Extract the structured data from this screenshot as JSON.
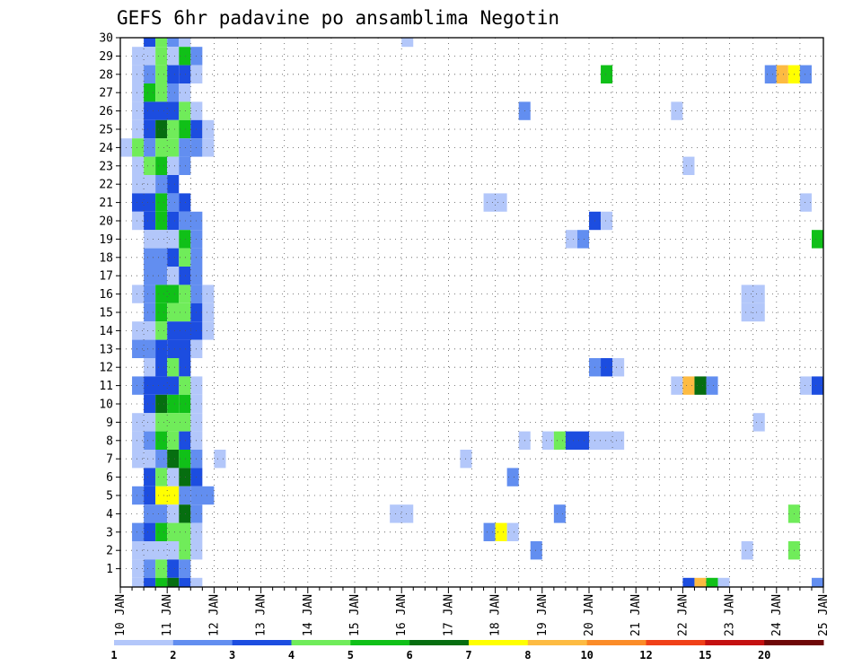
{
  "chart_data": {
    "type": "heatmap",
    "title": "GEFS 6hr padavine po ansamblima Negotin",
    "x_tick_labels": [
      "10 JAN",
      "11 JAN",
      "12 JAN",
      "13 JAN",
      "14 JAN",
      "15 JAN",
      "16 JAN",
      "17 JAN",
      "18 JAN",
      "19 JAN",
      "20 JAN",
      "21 JAN",
      "22 JAN",
      "23 JAN",
      "24 JAN",
      "25 JAN"
    ],
    "y_tick_labels": [
      "1",
      "2",
      "3",
      "4",
      "5",
      "6",
      "7",
      "8",
      "9",
      "10",
      "11",
      "12",
      "13",
      "14",
      "15",
      "16",
      "17",
      "18",
      "19",
      "20",
      "21",
      "22",
      "23",
      "24",
      "25",
      "26",
      "27",
      "28",
      "29",
      "30"
    ],
    "x_unit": "day",
    "xlim": [
      10,
      25
    ],
    "ylim": [
      0,
      30
    ],
    "levels": [
      "1",
      "2",
      "3",
      "4",
      "5",
      "6",
      "7",
      "8",
      "10",
      "12",
      "15",
      "20"
    ],
    "colors": [
      "#b3c7fa",
      "#628ef0",
      "#1c4de0",
      "#70ec5a",
      "#10c018",
      "#066e10",
      "#ffff00",
      "#fdbb42",
      "#fb8c28",
      "#f04018",
      "#c41010",
      "#6e0808"
    ],
    "cells": [
      {
        "x": 10.5,
        "x2": 10.75,
        "m": 30,
        "c": 2
      },
      {
        "x": 10.75,
        "x2": 11,
        "m": 30,
        "c": 3
      },
      {
        "x": 11,
        "x2": 11.25,
        "m": 30,
        "c": 1
      },
      {
        "x": 11.25,
        "x2": 11.5,
        "m": 30,
        "c": 0
      },
      {
        "x": 16,
        "x2": 16.25,
        "m": 30,
        "c": 0
      },
      {
        "x": 10.25,
        "x2": 10.75,
        "m": 29,
        "c": 0
      },
      {
        "x": 10.75,
        "x2": 11,
        "m": 29,
        "c": 3
      },
      {
        "x": 11,
        "x2": 11.25,
        "m": 29,
        "c": 0
      },
      {
        "x": 11.25,
        "x2": 11.5,
        "m": 29,
        "c": 4
      },
      {
        "x": 11.5,
        "x2": 11.75,
        "m": 29,
        "c": 1
      },
      {
        "x": 10.25,
        "x2": 10.5,
        "m": 28,
        "c": 0
      },
      {
        "x": 10.5,
        "x2": 10.75,
        "m": 28,
        "c": 1
      },
      {
        "x": 10.75,
        "x2": 11,
        "m": 28,
        "c": 3
      },
      {
        "x": 11,
        "x2": 11.25,
        "m": 28,
        "c": 2
      },
      {
        "x": 11.25,
        "x2": 11.5,
        "m": 28,
        "c": 2
      },
      {
        "x": 11.5,
        "x2": 11.75,
        "m": 28,
        "c": 0
      },
      {
        "x": 20.25,
        "x2": 20.5,
        "m": 28,
        "c": 4
      },
      {
        "x": 23.75,
        "x2": 24,
        "m": 28,
        "c": 1
      },
      {
        "x": 24,
        "x2": 24.25,
        "m": 28,
        "c": 7
      },
      {
        "x": 24.25,
        "x2": 24.5,
        "m": 28,
        "c": 6
      },
      {
        "x": 24.5,
        "x2": 24.75,
        "m": 28,
        "c": 1
      },
      {
        "x": 10.25,
        "x2": 10.5,
        "m": 27,
        "c": 0
      },
      {
        "x": 10.5,
        "x2": 10.75,
        "m": 27,
        "c": 4
      },
      {
        "x": 10.75,
        "x2": 11,
        "m": 27,
        "c": 3
      },
      {
        "x": 11,
        "x2": 11.25,
        "m": 27,
        "c": 1
      },
      {
        "x": 11.25,
        "x2": 11.5,
        "m": 27,
        "c": 0
      },
      {
        "x": 10.25,
        "x2": 10.5,
        "m": 26,
        "c": 0
      },
      {
        "x": 10.5,
        "x2": 11.25,
        "m": 26,
        "c": 2
      },
      {
        "x": 11.25,
        "x2": 11.5,
        "m": 26,
        "c": 3
      },
      {
        "x": 11.5,
        "x2": 11.75,
        "m": 26,
        "c": 0
      },
      {
        "x": 18.5,
        "x2": 18.75,
        "m": 26,
        "c": 1
      },
      {
        "x": 21.75,
        "x2": 22,
        "m": 26,
        "c": 0
      },
      {
        "x": 10.25,
        "x2": 10.5,
        "m": 25,
        "c": 0
      },
      {
        "x": 10.5,
        "x2": 10.75,
        "m": 25,
        "c": 2
      },
      {
        "x": 10.75,
        "x2": 11,
        "m": 25,
        "c": 5
      },
      {
        "x": 11,
        "x2": 11.25,
        "m": 25,
        "c": 3
      },
      {
        "x": 11.25,
        "x2": 11.5,
        "m": 25,
        "c": 4
      },
      {
        "x": 11.5,
        "x2": 11.75,
        "m": 25,
        "c": 2
      },
      {
        "x": 11.75,
        "x2": 12,
        "m": 25,
        "c": 0
      },
      {
        "x": 10,
        "x2": 10.25,
        "m": 24,
        "c": 0
      },
      {
        "x": 10.25,
        "x2": 10.5,
        "m": 24,
        "c": 3
      },
      {
        "x": 10.5,
        "x2": 10.75,
        "m": 24,
        "c": 1
      },
      {
        "x": 10.75,
        "x2": 11.25,
        "m": 24,
        "c": 3
      },
      {
        "x": 11.25,
        "x2": 11.5,
        "m": 24,
        "c": 1
      },
      {
        "x": 11.5,
        "x2": 11.75,
        "m": 24,
        "c": 1
      },
      {
        "x": 11.75,
        "x2": 12,
        "m": 24,
        "c": 0
      },
      {
        "x": 10.25,
        "x2": 10.5,
        "m": 23,
        "c": 0
      },
      {
        "x": 10.5,
        "x2": 10.75,
        "m": 23,
        "c": 3
      },
      {
        "x": 10.75,
        "x2": 11,
        "m": 23,
        "c": 4
      },
      {
        "x": 11,
        "x2": 11.25,
        "m": 23,
        "c": 0
      },
      {
        "x": 11.25,
        "x2": 11.5,
        "m": 23,
        "c": 1
      },
      {
        "x": 22,
        "x2": 22.25,
        "m": 23,
        "c": 0
      },
      {
        "x": 10.25,
        "x2": 10.75,
        "m": 22,
        "c": 0
      },
      {
        "x": 10.75,
        "x2": 11,
        "m": 22,
        "c": 1
      },
      {
        "x": 11,
        "x2": 11.25,
        "m": 22,
        "c": 2
      },
      {
        "x": 10.25,
        "x2": 10.75,
        "m": 21,
        "c": 2
      },
      {
        "x": 10.75,
        "x2": 11,
        "m": 21,
        "c": 4
      },
      {
        "x": 11,
        "x2": 11.25,
        "m": 21,
        "c": 1
      },
      {
        "x": 11.25,
        "x2": 11.5,
        "m": 21,
        "c": 2
      },
      {
        "x": 17.75,
        "x2": 18.25,
        "m": 21,
        "c": 0
      },
      {
        "x": 24.5,
        "x2": 24.75,
        "m": 21,
        "c": 0
      },
      {
        "x": 10.25,
        "x2": 10.5,
        "m": 20,
        "c": 0
      },
      {
        "x": 10.5,
        "x2": 10.75,
        "m": 20,
        "c": 2
      },
      {
        "x": 10.75,
        "x2": 11,
        "m": 20,
        "c": 4
      },
      {
        "x": 11,
        "x2": 11.25,
        "m": 20,
        "c": 2
      },
      {
        "x": 11.25,
        "x2": 11.75,
        "m": 20,
        "c": 1
      },
      {
        "x": 20,
        "x2": 20.25,
        "m": 20,
        "c": 2
      },
      {
        "x": 20.25,
        "x2": 20.5,
        "m": 20,
        "c": 0
      },
      {
        "x": 10.5,
        "x2": 11.25,
        "m": 19,
        "c": 0
      },
      {
        "x": 11.25,
        "x2": 11.5,
        "m": 19,
        "c": 4
      },
      {
        "x": 11.5,
        "x2": 11.75,
        "m": 19,
        "c": 1
      },
      {
        "x": 19.5,
        "x2": 19.75,
        "m": 19,
        "c": 0
      },
      {
        "x": 19.75,
        "x2": 20,
        "m": 19,
        "c": 1
      },
      {
        "x": 24.75,
        "x2": 25,
        "m": 19,
        "c": 4
      },
      {
        "x": 10.5,
        "x2": 11,
        "m": 18,
        "c": 1
      },
      {
        "x": 11,
        "x2": 11.25,
        "m": 18,
        "c": 2
      },
      {
        "x": 11.25,
        "x2": 11.5,
        "m": 18,
        "c": 3
      },
      {
        "x": 11.5,
        "x2": 11.75,
        "m": 18,
        "c": 1
      },
      {
        "x": 10.5,
        "x2": 11,
        "m": 17,
        "c": 1
      },
      {
        "x": 11,
        "x2": 11.25,
        "m": 17,
        "c": 0
      },
      {
        "x": 11.25,
        "x2": 11.5,
        "m": 17,
        "c": 2
      },
      {
        "x": 11.5,
        "x2": 11.75,
        "m": 17,
        "c": 1
      },
      {
        "x": 10.25,
        "x2": 10.5,
        "m": 16,
        "c": 0
      },
      {
        "x": 10.5,
        "x2": 10.75,
        "m": 16,
        "c": 1
      },
      {
        "x": 10.75,
        "x2": 11.25,
        "m": 16,
        "c": 4
      },
      {
        "x": 11.25,
        "x2": 11.5,
        "m": 16,
        "c": 3
      },
      {
        "x": 11.5,
        "x2": 11.75,
        "m": 16,
        "c": 1
      },
      {
        "x": 11.75,
        "x2": 12,
        "m": 16,
        "c": 0
      },
      {
        "x": 23.25,
        "x2": 23.75,
        "m": 16,
        "c": 0
      },
      {
        "x": 10.5,
        "x2": 10.75,
        "m": 15,
        "c": 1
      },
      {
        "x": 10.75,
        "x2": 11,
        "m": 15,
        "c": 4
      },
      {
        "x": 11,
        "x2": 11.5,
        "m": 15,
        "c": 3
      },
      {
        "x": 11.5,
        "x2": 11.75,
        "m": 15,
        "c": 2
      },
      {
        "x": 11.75,
        "x2": 12,
        "m": 15,
        "c": 0
      },
      {
        "x": 23.25,
        "x2": 23.75,
        "m": 15,
        "c": 0
      },
      {
        "x": 10.25,
        "x2": 10.75,
        "m": 14,
        "c": 0
      },
      {
        "x": 10.75,
        "x2": 11,
        "m": 14,
        "c": 3
      },
      {
        "x": 11,
        "x2": 11.75,
        "m": 14,
        "c": 2
      },
      {
        "x": 11.75,
        "x2": 12,
        "m": 14,
        "c": 0
      },
      {
        "x": 10.25,
        "x2": 10.75,
        "m": 13,
        "c": 1
      },
      {
        "x": 10.75,
        "x2": 11,
        "m": 13,
        "c": 2
      },
      {
        "x": 11,
        "x2": 11.5,
        "m": 13,
        "c": 2
      },
      {
        "x": 11.5,
        "x2": 11.75,
        "m": 13,
        "c": 0
      },
      {
        "x": 10.5,
        "x2": 10.75,
        "m": 12,
        "c": 0
      },
      {
        "x": 10.75,
        "x2": 11,
        "m": 12,
        "c": 2
      },
      {
        "x": 11,
        "x2": 11.25,
        "m": 12,
        "c": 3
      },
      {
        "x": 11.25,
        "x2": 11.5,
        "m": 12,
        "c": 2
      },
      {
        "x": 20,
        "x2": 20.25,
        "m": 12,
        "c": 1
      },
      {
        "x": 20.25,
        "x2": 20.5,
        "m": 12,
        "c": 2
      },
      {
        "x": 20.5,
        "x2": 20.75,
        "m": 12,
        "c": 0
      },
      {
        "x": 10.25,
        "x2": 10.5,
        "m": 11,
        "c": 1
      },
      {
        "x": 10.5,
        "x2": 11.25,
        "m": 11,
        "c": 2
      },
      {
        "x": 11.25,
        "x2": 11.5,
        "m": 11,
        "c": 3
      },
      {
        "x": 11.5,
        "x2": 11.75,
        "m": 11,
        "c": 0
      },
      {
        "x": 21.75,
        "x2": 22,
        "m": 11,
        "c": 0
      },
      {
        "x": 22,
        "x2": 22.25,
        "m": 11,
        "c": 7
      },
      {
        "x": 22.25,
        "x2": 22.5,
        "m": 11,
        "c": 5
      },
      {
        "x": 22.5,
        "x2": 22.75,
        "m": 11,
        "c": 1
      },
      {
        "x": 24.5,
        "x2": 24.75,
        "m": 11,
        "c": 0
      },
      {
        "x": 24.75,
        "x2": 25,
        "m": 11,
        "c": 2
      },
      {
        "x": 10.5,
        "x2": 10.75,
        "m": 10,
        "c": 2
      },
      {
        "x": 10.75,
        "x2": 11,
        "m": 10,
        "c": 5
      },
      {
        "x": 11,
        "x2": 11.25,
        "m": 10,
        "c": 4
      },
      {
        "x": 11.25,
        "x2": 11.5,
        "m": 10,
        "c": 4
      },
      {
        "x": 11.5,
        "x2": 11.75,
        "m": 10,
        "c": 0
      },
      {
        "x": 10.25,
        "x2": 10.75,
        "m": 9,
        "c": 0
      },
      {
        "x": 10.75,
        "x2": 11.5,
        "m": 9,
        "c": 3
      },
      {
        "x": 11.5,
        "x2": 11.75,
        "m": 9,
        "c": 0
      },
      {
        "x": 23.5,
        "x2": 23.75,
        "m": 9,
        "c": 0
      },
      {
        "x": 10.25,
        "x2": 10.5,
        "m": 8,
        "c": 0
      },
      {
        "x": 10.5,
        "x2": 10.75,
        "m": 8,
        "c": 1
      },
      {
        "x": 10.75,
        "x2": 11,
        "m": 8,
        "c": 4
      },
      {
        "x": 11,
        "x2": 11.25,
        "m": 8,
        "c": 3
      },
      {
        "x": 11.25,
        "x2": 11.5,
        "m": 8,
        "c": 2
      },
      {
        "x": 11.5,
        "x2": 11.75,
        "m": 8,
        "c": 0
      },
      {
        "x": 18.5,
        "x2": 18.75,
        "m": 8,
        "c": 0
      },
      {
        "x": 19,
        "x2": 19.25,
        "m": 8,
        "c": 0
      },
      {
        "x": 19.25,
        "x2": 19.5,
        "m": 8,
        "c": 3
      },
      {
        "x": 19.5,
        "x2": 20,
        "m": 8,
        "c": 2
      },
      {
        "x": 20,
        "x2": 20.75,
        "m": 8,
        "c": 0
      },
      {
        "x": 10.25,
        "x2": 10.5,
        "m": 7,
        "c": 0
      },
      {
        "x": 10.5,
        "x2": 10.75,
        "m": 7,
        "c": 0
      },
      {
        "x": 10.75,
        "x2": 11,
        "m": 7,
        "c": 1
      },
      {
        "x": 11,
        "x2": 11.25,
        "m": 7,
        "c": 5
      },
      {
        "x": 11.25,
        "x2": 11.5,
        "m": 7,
        "c": 4
      },
      {
        "x": 11.5,
        "x2": 11.75,
        "m": 7,
        "c": 1
      },
      {
        "x": 12,
        "x2": 12.25,
        "m": 7,
        "c": 0
      },
      {
        "x": 17.25,
        "x2": 17.5,
        "m": 7,
        "c": 0
      },
      {
        "x": 10.5,
        "x2": 10.75,
        "m": 6,
        "c": 2
      },
      {
        "x": 10.75,
        "x2": 11,
        "m": 6,
        "c": 3
      },
      {
        "x": 11,
        "x2": 11.25,
        "m": 6,
        "c": 0
      },
      {
        "x": 11.25,
        "x2": 11.5,
        "m": 6,
        "c": 5
      },
      {
        "x": 11.5,
        "x2": 11.75,
        "m": 6,
        "c": 2
      },
      {
        "x": 18.25,
        "x2": 18.5,
        "m": 6,
        "c": 1
      },
      {
        "x": 10.25,
        "x2": 10.5,
        "m": 5,
        "c": 1
      },
      {
        "x": 10.5,
        "x2": 10.75,
        "m": 5,
        "c": 2
      },
      {
        "x": 10.75,
        "x2": 11.25,
        "m": 5,
        "c": 6
      },
      {
        "x": 11.25,
        "x2": 11.5,
        "m": 5,
        "c": 1
      },
      {
        "x": 11.5,
        "x2": 12,
        "m": 5,
        "c": 1
      },
      {
        "x": 10.5,
        "x2": 11,
        "m": 4,
        "c": 1
      },
      {
        "x": 11,
        "x2": 11.25,
        "m": 4,
        "c": 0
      },
      {
        "x": 11.25,
        "x2": 11.5,
        "m": 4,
        "c": 5
      },
      {
        "x": 11.5,
        "x2": 11.75,
        "m": 4,
        "c": 1
      },
      {
        "x": 15.75,
        "x2": 16.25,
        "m": 4,
        "c": 0
      },
      {
        "x": 19.25,
        "x2": 19.5,
        "m": 4,
        "c": 1
      },
      {
        "x": 24.25,
        "x2": 24.5,
        "m": 4,
        "c": 3
      },
      {
        "x": 10.25,
        "x2": 10.5,
        "m": 3,
        "c": 1
      },
      {
        "x": 10.5,
        "x2": 10.75,
        "m": 3,
        "c": 2
      },
      {
        "x": 10.75,
        "x2": 11,
        "m": 3,
        "c": 4
      },
      {
        "x": 11,
        "x2": 11.5,
        "m": 3,
        "c": 3
      },
      {
        "x": 11.5,
        "x2": 11.75,
        "m": 3,
        "c": 0
      },
      {
        "x": 17.75,
        "x2": 18,
        "m": 3,
        "c": 1
      },
      {
        "x": 18,
        "x2": 18.25,
        "m": 3,
        "c": 6
      },
      {
        "x": 18.25,
        "x2": 18.5,
        "m": 3,
        "c": 0
      },
      {
        "x": 10.25,
        "x2": 11,
        "m": 2,
        "c": 0
      },
      {
        "x": 11,
        "x2": 11.25,
        "m": 2,
        "c": 0
      },
      {
        "x": 11.25,
        "x2": 11.5,
        "m": 2,
        "c": 3
      },
      {
        "x": 11.5,
        "x2": 11.75,
        "m": 2,
        "c": 0
      },
      {
        "x": 18.75,
        "x2": 19,
        "m": 2,
        "c": 1
      },
      {
        "x": 23.25,
        "x2": 23.5,
        "m": 2,
        "c": 0
      },
      {
        "x": 24.25,
        "x2": 24.5,
        "m": 2,
        "c": 3
      },
      {
        "x": 10.25,
        "x2": 10.5,
        "m": 1,
        "c": 0
      },
      {
        "x": 10.5,
        "x2": 10.75,
        "m": 1,
        "c": 1
      },
      {
        "x": 10.75,
        "x2": 11,
        "m": 1,
        "c": 3
      },
      {
        "x": 11,
        "x2": 11.25,
        "m": 1,
        "c": 2
      },
      {
        "x": 11.25,
        "x2": 11.5,
        "m": 1,
        "c": 1
      },
      {
        "x": 10.25,
        "x2": 10.5,
        "m": 0,
        "c": 0
      },
      {
        "x": 10.5,
        "x2": 10.75,
        "m": 0,
        "c": 2
      },
      {
        "x": 10.75,
        "x2": 11,
        "m": 0,
        "c": 4
      },
      {
        "x": 11,
        "x2": 11.25,
        "m": 0,
        "c": 5
      },
      {
        "x": 11.25,
        "x2": 11.5,
        "m": 0,
        "c": 2
      },
      {
        "x": 11.5,
        "x2": 11.75,
        "m": 0,
        "c": 0
      },
      {
        "x": 22,
        "x2": 22.25,
        "m": 0,
        "c": 2
      },
      {
        "x": 22.25,
        "x2": 22.5,
        "m": 0,
        "c": 7
      },
      {
        "x": 22.5,
        "x2": 22.75,
        "m": 0,
        "c": 4
      },
      {
        "x": 22.75,
        "x2": 23,
        "m": 0,
        "c": 0
      },
      {
        "x": 24.75,
        "x2": 25,
        "m": 0,
        "c": 1
      }
    ]
  }
}
